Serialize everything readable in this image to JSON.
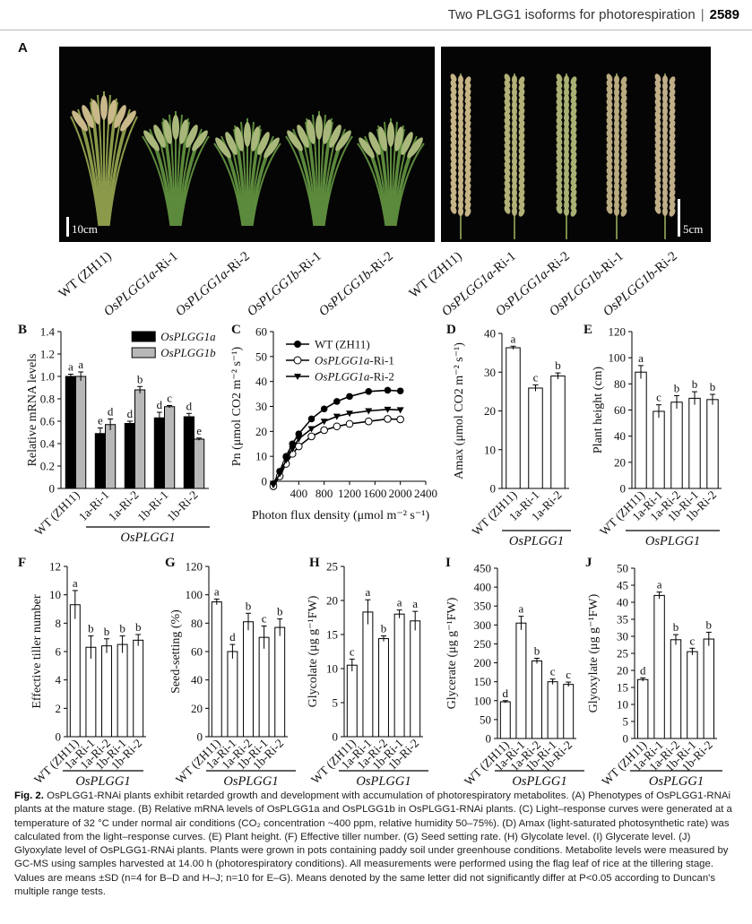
{
  "header": {
    "running_title": "Two PLGG1 isoforms for photorespiration",
    "page_number": "2589"
  },
  "panel_A": {
    "letter": "A",
    "scale_left": "10cm",
    "scale_right": "5cm",
    "labels": [
      {
        "plain": "WT (ZH11)",
        "italic": "",
        "suffix": ""
      },
      {
        "plain": "",
        "italic": "OsPLGG1a",
        "suffix": "-Ri-1"
      },
      {
        "plain": "",
        "italic": "OsPLGG1a",
        "suffix": "-Ri-2"
      },
      {
        "plain": "",
        "italic": "OsPLGG1b",
        "suffix": "-Ri-1"
      },
      {
        "plain": "",
        "italic": "OsPLGG1b",
        "suffix": "-Ri-2"
      },
      {
        "plain": "WT (ZH11)",
        "italic": "",
        "suffix": ""
      },
      {
        "plain": "",
        "italic": "OsPLGG1a",
        "suffix": "-Ri-1"
      },
      {
        "plain": "",
        "italic": "OsPLGG1a",
        "suffix": "-Ri-2"
      },
      {
        "plain": "",
        "italic": "OsPLGG1b",
        "suffix": "-Ri-1"
      },
      {
        "plain": "",
        "italic": "OsPLGG1b",
        "suffix": "-Ri-2"
      }
    ]
  },
  "chart_data": [
    {
      "panel": "B",
      "type": "bar",
      "ylabel": "Relative mRNA levels",
      "ylim": [
        0,
        1.4
      ],
      "yticks": [
        "0",
        "0.2",
        "0.4",
        "0.6",
        "0.8",
        "1.0",
        "1.2",
        "1.4"
      ],
      "ytick_values": [
        0,
        0.2,
        0.4,
        0.6,
        0.8,
        1.0,
        1.2,
        1.4
      ],
      "categories": [
        "WT (ZH11)",
        "1a-Ri-1",
        "1a-Ri-2",
        "1b-Ri-1",
        "1b-Ri-2"
      ],
      "group_label": "OsPLGG1",
      "series": [
        {
          "name": "OsPLGG1a",
          "color": "#000000",
          "values": [
            1.0,
            0.49,
            0.58,
            0.63,
            0.64
          ],
          "errors": [
            0.02,
            0.05,
            0.02,
            0.05,
            0.03
          ],
          "letters": [
            "a",
            "e",
            "d",
            "d",
            "d"
          ]
        },
        {
          "name": "OsPLGG1b",
          "color": "#b8b8b8",
          "values": [
            1.0,
            0.57,
            0.88,
            0.73,
            0.44
          ],
          "errors": [
            0.04,
            0.05,
            0.03,
            0.01,
            0.01
          ],
          "letters": [
            "a",
            "d",
            "b",
            "c",
            "e"
          ]
        }
      ]
    },
    {
      "panel": "C",
      "type": "line",
      "xlabel": "Photon flux density (μmol m⁻² s⁻¹)",
      "ylabel": "Pn (μmol CO2 m⁻² s⁻¹)",
      "xlim": [
        0,
        2400
      ],
      "ylim": [
        0,
        60
      ],
      "xticks": [
        "400",
        "800",
        "1200",
        "1600",
        "2000",
        "2400"
      ],
      "xtick_values": [
        400,
        800,
        1200,
        1600,
        2000,
        2400
      ],
      "yticks": [
        "0",
        "10",
        "20",
        "30",
        "40",
        "50",
        "60"
      ],
      "ytick_values": [
        0,
        10,
        20,
        30,
        40,
        50,
        60
      ],
      "x": [
        0,
        100,
        200,
        300,
        400,
        600,
        800,
        1000,
        1200,
        1500,
        1800,
        2000
      ],
      "series": [
        {
          "name": "WT (ZH11)",
          "marker": "filled-circle",
          "values": [
            -1,
            4,
            10,
            15,
            19,
            25,
            29,
            32,
            34,
            36,
            36.5,
            36.2
          ]
        },
        {
          "name": "OsPLGG1a-Ri-1",
          "name_italic": "OsPLGG1a",
          "name_suffix": "-Ri-1",
          "marker": "open-circle",
          "values": [
            -2,
            2,
            7,
            11,
            14,
            18,
            20.5,
            22,
            23,
            24,
            25,
            24.8
          ]
        },
        {
          "name": "OsPLGG1a-Ri-2",
          "name_italic": "OsPLGG1a",
          "name_suffix": "-Ri-2",
          "marker": "filled-triangle",
          "values": [
            -1.5,
            3,
            8.5,
            13,
            17,
            21,
            24,
            26,
            27.2,
            28.2,
            28.8,
            28.6
          ]
        }
      ]
    },
    {
      "panel": "D",
      "type": "bar",
      "ylabel": "Amax (μmol CO2 m⁻² s⁻¹)",
      "ylim": [
        0,
        40
      ],
      "yticks": [
        "0",
        "10",
        "20",
        "30",
        "40"
      ],
      "ytick_values": [
        0,
        10,
        20,
        30,
        40
      ],
      "categories": [
        "WT (ZH11)",
        "1a-Ri-1",
        "1a-Ri-2"
      ],
      "group_label": "OsPLGG1",
      "values": [
        36.3,
        25.9,
        29.0
      ],
      "errors": [
        0.4,
        0.8,
        0.8
      ],
      "letters": [
        "a",
        "c",
        "b"
      ]
    },
    {
      "panel": "E",
      "type": "bar",
      "ylabel": "Plant height (cm)",
      "ylim": [
        0,
        120
      ],
      "yticks": [
        "0",
        "20",
        "40",
        "60",
        "80",
        "100",
        "120"
      ],
      "ytick_values": [
        0,
        20,
        40,
        60,
        80,
        100,
        120
      ],
      "categories": [
        "WT (ZH11)",
        "1a-Ri-1",
        "1a-Ri-2",
        "1b-Ri-1",
        "1b-Ri-2"
      ],
      "group_label": "OsPLGG1",
      "values": [
        89,
        59,
        66,
        69,
        68
      ],
      "errors": [
        5,
        5,
        5,
        5,
        4
      ],
      "letters": [
        "a",
        "c",
        "b",
        "b",
        "b"
      ]
    },
    {
      "panel": "F",
      "type": "bar",
      "ylabel": "Effective tiller number",
      "ylim": [
        0,
        12
      ],
      "yticks": [
        "0",
        "2",
        "4",
        "6",
        "8",
        "10",
        "12"
      ],
      "ytick_values": [
        0,
        2,
        4,
        6,
        8,
        10,
        12
      ],
      "categories": [
        "WT (ZH11)",
        "1a-Ri-1",
        "1a-Ri-2",
        "1b-Ri-1",
        "1b-Ri-2"
      ],
      "group_label": "OsPLGG1",
      "values": [
        9.3,
        6.3,
        6.4,
        6.5,
        6.8
      ],
      "errors": [
        1.0,
        0.8,
        0.5,
        0.6,
        0.4
      ],
      "letters": [
        "a",
        "b",
        "b",
        "b",
        "b"
      ]
    },
    {
      "panel": "G",
      "type": "bar",
      "ylabel": "Seed-setting (%)",
      "ylim": [
        0,
        120
      ],
      "yticks": [
        "0",
        "20",
        "40",
        "60",
        "80",
        "100",
        "120"
      ],
      "ytick_values": [
        0,
        20,
        40,
        60,
        80,
        100,
        120
      ],
      "categories": [
        "WT (ZH11)",
        "1a-Ri-1",
        "1a-Ri-2",
        "1b-Ri-1",
        "1b-Ri-2"
      ],
      "group_label": "OsPLGG1",
      "values": [
        95,
        60,
        81,
        70,
        77
      ],
      "errors": [
        2,
        5,
        6,
        8,
        6
      ],
      "letters": [
        "a",
        "d",
        "b",
        "c",
        "b"
      ]
    },
    {
      "panel": "H",
      "type": "bar",
      "ylabel": "Glycolate (μg g⁻¹FW)",
      "ylim": [
        0,
        25
      ],
      "yticks": [
        "0",
        "5",
        "10",
        "15",
        "20",
        "25"
      ],
      "ytick_values": [
        0,
        5,
        10,
        15,
        20,
        25
      ],
      "categories": [
        "WT (ZH11)",
        "1a-Ri-1",
        "1a-Ri-2",
        "1b-Ri-1",
        "1b-Ri-2"
      ],
      "group_label": "OsPLGG1",
      "values": [
        10.5,
        18.3,
        14.4,
        18.0,
        17.0
      ],
      "errors": [
        0.9,
        1.8,
        0.4,
        0.6,
        1.4
      ],
      "letters": [
        "c",
        "a",
        "b",
        "a",
        "a"
      ]
    },
    {
      "panel": "I",
      "type": "bar",
      "ylabel": "Glycerate (μg g⁻¹FW)",
      "ylim": [
        0,
        450
      ],
      "yticks": [
        "0",
        "50",
        "100",
        "150",
        "200",
        "250",
        "300",
        "350",
        "400",
        "450"
      ],
      "ytick_values": [
        0,
        50,
        100,
        150,
        200,
        250,
        300,
        350,
        400,
        450
      ],
      "categories": [
        "WT (ZH11)",
        "1a-Ri-1",
        "1a-Ri-2",
        "1b-Ri-1",
        "1b-Ri-2"
      ],
      "group_label": "OsPLGG1",
      "values": [
        97,
        305,
        205,
        150,
        143
      ],
      "errors": [
        3,
        18,
        7,
        7,
        6
      ],
      "letters": [
        "d",
        "a",
        "b",
        "c",
        "c"
      ]
    },
    {
      "panel": "J",
      "type": "bar",
      "ylabel": "Glyoxylate (μg g⁻¹FW)",
      "ylim": [
        0,
        50
      ],
      "yticks": [
        "0",
        "5",
        "10",
        "15",
        "20",
        "25",
        "30",
        "35",
        "40",
        "45",
        "50"
      ],
      "ytick_values": [
        0,
        5,
        10,
        15,
        20,
        25,
        30,
        35,
        40,
        45,
        50
      ],
      "categories": [
        "WT (ZH11)",
        "1a-Ri-1",
        "1a-Ri-2",
        "1b-Ri-1",
        "1b-Ri-2"
      ],
      "group_label": "OsPLGG1",
      "values": [
        17.3,
        42.0,
        29.0,
        25.5,
        29.2
      ],
      "errors": [
        0.5,
        1.0,
        1.5,
        1.0,
        2.0
      ],
      "letters": [
        "d",
        "a",
        "b",
        "c",
        "b"
      ]
    }
  ],
  "caption": {
    "fig": "Fig. 2.",
    "text": "OsPLGG1-RNAi plants exhibit retarded growth and development with accumulation of photorespiratory metabolites. (A) Phenotypes of OsPLGG1-RNAi plants at the mature stage. (B) Relative mRNA levels of OsPLGG1a and OsPLGG1b in OsPLGG1-RNAi plants. (C) Light–response curves were generated at a temperature of 32 °C under normal air conditions (CO₂ concentration ~400 ppm, relative humidity 50–75%). (D) Amax (light-saturated photosynthetic rate) was calculated from the light–response curves. (E) Plant height. (F) Effective tiller number. (G) Seed setting rate. (H) Glycolate level. (I) Glycerate level. (J) Glyoxylate level of OsPLGG1-RNAi plants. Plants were grown in pots containing paddy soil under greenhouse conditions. Metabolite levels were measured by GC-MS using samples harvested at 14.00 h (photorespiratory conditions). All measurements were performed using the flag leaf of rice at the tillering stage. Values are means ±SD (n=4 for B–D and H–J; n=10 for E–G). Means denoted by the same letter did not significantly differ at P<0.05 according to Duncan's multiple range tests."
  }
}
